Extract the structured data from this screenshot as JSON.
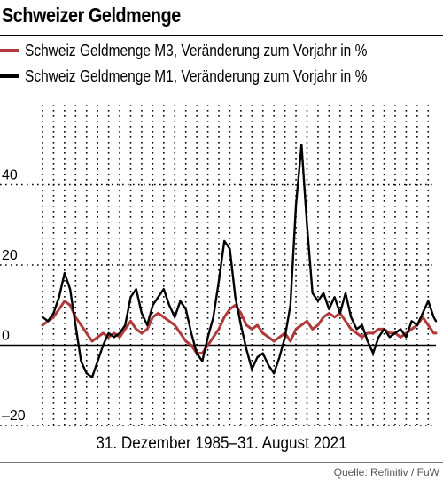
{
  "header": {
    "title": "Schweizer Geldmenge"
  },
  "legend": [
    {
      "label": "Schweiz Geldmenge M3, Veränderung zum Vorjahr in %",
      "color": "#b03a3a"
    },
    {
      "label": "Schweiz Geldmenge M1, Veränderung zum Vorjahr in %",
      "color": "#000000"
    }
  ],
  "footer": {
    "date_range": "31. Dezember 1985–31. August 2021",
    "source": "Quelle: Refinitiv / FuW"
  },
  "chart_data": {
    "type": "line",
    "x_range": [
      1986,
      2021.7
    ],
    "ylim": [
      -20,
      60
    ],
    "y_ticks": [
      -20,
      0,
      20,
      40
    ],
    "y_tick_labels": [
      "–20",
      "0",
      "20",
      "40"
    ],
    "grid": "vertical dotted yearly, horizontal dotted at y ticks",
    "series": [
      {
        "name": "Schweiz Geldmenge M3, Veränderung zum Vorjahr in %",
        "color": "#b03a3a",
        "points": [
          [
            1986,
            5
          ],
          [
            1986.5,
            6
          ],
          [
            1987,
            7
          ],
          [
            1987.5,
            9
          ],
          [
            1988,
            11
          ],
          [
            1988.5,
            10
          ],
          [
            1989,
            7
          ],
          [
            1989.5,
            5
          ],
          [
            1990,
            3
          ],
          [
            1990.5,
            1
          ],
          [
            1991,
            2
          ],
          [
            1991.5,
            3
          ],
          [
            1992,
            2
          ],
          [
            1992.5,
            3
          ],
          [
            1993,
            2
          ],
          [
            1993.5,
            4
          ],
          [
            1994,
            6
          ],
          [
            1994.5,
            4
          ],
          [
            1995,
            3
          ],
          [
            1995.5,
            4
          ],
          [
            1996,
            7
          ],
          [
            1996.5,
            8
          ],
          [
            1997,
            7
          ],
          [
            1997.5,
            6
          ],
          [
            1998,
            5
          ],
          [
            1998.5,
            3
          ],
          [
            1999,
            1
          ],
          [
            1999.5,
            0
          ],
          [
            2000,
            -2
          ],
          [
            2000.5,
            -2
          ],
          [
            2001,
            0
          ],
          [
            2001.5,
            2
          ],
          [
            2002,
            4
          ],
          [
            2002.5,
            7
          ],
          [
            2003,
            9
          ],
          [
            2003.5,
            10
          ],
          [
            2004,
            8
          ],
          [
            2004.5,
            5
          ],
          [
            2005,
            4
          ],
          [
            2005.5,
            5
          ],
          [
            2006,
            3
          ],
          [
            2006.5,
            2
          ],
          [
            2007,
            1
          ],
          [
            2007.5,
            2
          ],
          [
            2008,
            3
          ],
          [
            2008.5,
            1
          ],
          [
            2009,
            4
          ],
          [
            2009.5,
            5
          ],
          [
            2010,
            6
          ],
          [
            2010.5,
            4
          ],
          [
            2011,
            5
          ],
          [
            2011.5,
            7
          ],
          [
            2012,
            8
          ],
          [
            2012.5,
            7
          ],
          [
            2013,
            8
          ],
          [
            2013.5,
            6
          ],
          [
            2014,
            4
          ],
          [
            2014.5,
            3
          ],
          [
            2015,
            2
          ],
          [
            2015.5,
            3
          ],
          [
            2016,
            3
          ],
          [
            2016.5,
            4
          ],
          [
            2017,
            4
          ],
          [
            2017.5,
            3
          ],
          [
            2018,
            3
          ],
          [
            2018.5,
            2
          ],
          [
            2019,
            3
          ],
          [
            2019.5,
            4
          ],
          [
            2020,
            5
          ],
          [
            2020.5,
            7
          ],
          [
            2021,
            5
          ],
          [
            2021.5,
            3
          ],
          [
            2021.7,
            3
          ]
        ]
      },
      {
        "name": "Schweiz Geldmenge M1, Veränderung zum Vorjahr in %",
        "color": "#000000",
        "points": [
          [
            1986,
            7
          ],
          [
            1986.5,
            6
          ],
          [
            1987,
            8
          ],
          [
            1987.5,
            12
          ],
          [
            1988,
            18
          ],
          [
            1988.5,
            14
          ],
          [
            1989,
            5
          ],
          [
            1989.5,
            -4
          ],
          [
            1990,
            -7
          ],
          [
            1990.5,
            -8
          ],
          [
            1991,
            -4
          ],
          [
            1991.5,
            0
          ],
          [
            1992,
            3
          ],
          [
            1992.5,
            2
          ],
          [
            1993,
            3
          ],
          [
            1993.5,
            5
          ],
          [
            1994,
            12
          ],
          [
            1994.5,
            14
          ],
          [
            1995,
            8
          ],
          [
            1995.5,
            5
          ],
          [
            1996,
            10
          ],
          [
            1996.5,
            12
          ],
          [
            1997,
            14
          ],
          [
            1997.5,
            10
          ],
          [
            1998,
            7
          ],
          [
            1998.5,
            11
          ],
          [
            1999,
            9
          ],
          [
            1999.5,
            3
          ],
          [
            2000,
            -2
          ],
          [
            2000.5,
            -4
          ],
          [
            2001,
            2
          ],
          [
            2001.5,
            7
          ],
          [
            2002,
            16
          ],
          [
            2002.5,
            26
          ],
          [
            2003,
            24
          ],
          [
            2003.5,
            12
          ],
          [
            2004,
            5
          ],
          [
            2004.5,
            -1
          ],
          [
            2005,
            -6
          ],
          [
            2005.5,
            -3
          ],
          [
            2006,
            -2
          ],
          [
            2006.5,
            -5
          ],
          [
            2007,
            -7
          ],
          [
            2007.5,
            -3
          ],
          [
            2008,
            2
          ],
          [
            2008.5,
            10
          ],
          [
            2009,
            35
          ],
          [
            2009.5,
            50
          ],
          [
            2010,
            30
          ],
          [
            2010.5,
            13
          ],
          [
            2011,
            11
          ],
          [
            2011.5,
            13
          ],
          [
            2012,
            9
          ],
          [
            2012.5,
            12
          ],
          [
            2013,
            8
          ],
          [
            2013.5,
            13
          ],
          [
            2014,
            7
          ],
          [
            2014.5,
            4
          ],
          [
            2015,
            5
          ],
          [
            2015.5,
            1
          ],
          [
            2016,
            -2
          ],
          [
            2016.5,
            2
          ],
          [
            2017,
            4
          ],
          [
            2017.5,
            2
          ],
          [
            2018,
            3
          ],
          [
            2018.5,
            4
          ],
          [
            2019,
            2
          ],
          [
            2019.5,
            6
          ],
          [
            2020,
            5
          ],
          [
            2020.5,
            8
          ],
          [
            2021,
            11
          ],
          [
            2021.5,
            7
          ],
          [
            2021.7,
            6
          ]
        ]
      }
    ]
  }
}
